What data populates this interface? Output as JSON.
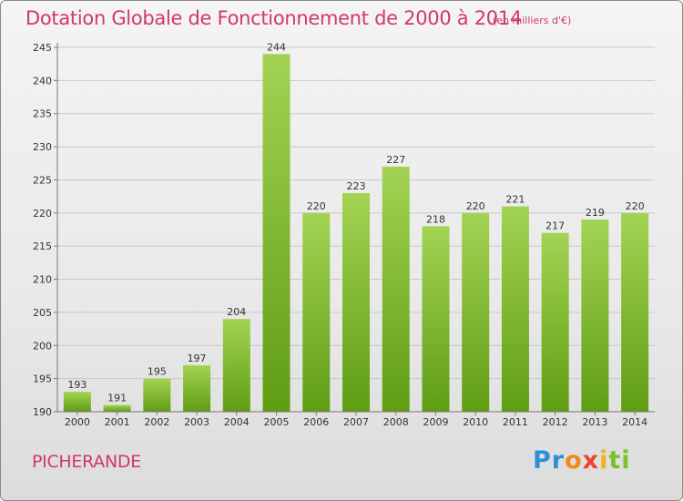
{
  "header": {
    "title": "Dotation Globale de Fonctionnement de 2000 à 2014",
    "unit": "(en milliers d'€)"
  },
  "commune": "PICHERANDE",
  "logo": {
    "parts": [
      "Pr",
      "o",
      "x",
      "i",
      "ti"
    ]
  },
  "colors": {
    "accent": "#d1386a",
    "bar_top": "#a3d353",
    "bar_bottom": "#5f9d13",
    "grid": "#c8c8c8"
  },
  "chart_data": {
    "type": "bar",
    "title": "Dotation Globale de Fonctionnement de 2000 à 2014",
    "subtitle": "(en milliers d'€)",
    "categories": [
      "2000",
      "2001",
      "2002",
      "2003",
      "2004",
      "2005",
      "2006",
      "2007",
      "2008",
      "2009",
      "2010",
      "2011",
      "2012",
      "2013",
      "2014"
    ],
    "values": [
      193,
      191,
      195,
      197,
      204,
      244,
      220,
      223,
      227,
      218,
      220,
      221,
      217,
      219,
      220
    ],
    "value_labels": [
      "193",
      "191",
      "195",
      "197",
      "204",
      "244",
      "220",
      "223",
      "227",
      "218",
      "220",
      "221",
      "217",
      "219",
      "220"
    ],
    "ylim": [
      190,
      245
    ],
    "yticks": [
      190,
      195,
      200,
      205,
      210,
      215,
      220,
      225,
      230,
      235,
      240,
      245
    ],
    "ytick_labels": [
      "190",
      "195",
      "200",
      "205",
      "210",
      "215",
      "220",
      "225",
      "230",
      "235",
      "240",
      "245"
    ],
    "grid": true,
    "xlabel": "",
    "ylabel": ""
  }
}
